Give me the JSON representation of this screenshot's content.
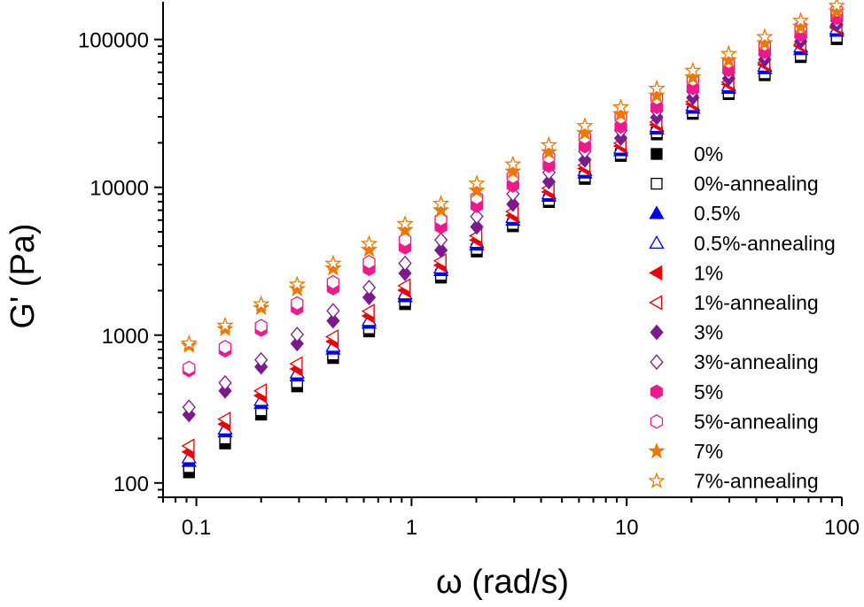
{
  "chart_data": {
    "type": "scatter",
    "xlabel": "ω (rad/s)",
    "ylabel": "G' (Pa)",
    "xscale": "log",
    "yscale": "log",
    "xlim": [
      0.07,
      100
    ],
    "ylim": [
      80,
      180000
    ],
    "x_ticks": [
      0.1,
      1,
      10,
      100
    ],
    "x_tick_labels": [
      "0.1",
      "1",
      "10",
      "100"
    ],
    "y_ticks": [
      100,
      1000,
      10000,
      100000
    ],
    "y_tick_labels": [
      "100",
      "1000",
      "10000",
      "100000"
    ],
    "grid": false,
    "legend_position": "right",
    "x": [
      0.0924,
      0.136,
      0.2,
      0.294,
      0.432,
      0.635,
      0.933,
      1.37,
      2.01,
      2.96,
      4.35,
      6.39,
      9.39,
      13.8,
      20.3,
      29.8,
      43.8,
      64.4,
      94.7
    ],
    "series": [
      {
        "name": "0%",
        "marker": "square",
        "filled": true,
        "color": "#000000",
        "values": [
          118,
          185,
          290,
          450,
          700,
          1060,
          1620,
          2450,
          3680,
          5450,
          7950,
          11400,
          16300,
          22800,
          31400,
          42700,
          57300,
          76000,
          100500
        ]
      },
      {
        "name": "0%-annealing",
        "marker": "square",
        "filled": false,
        "color": "#000000",
        "values": [
          128,
          200,
          310,
          480,
          740,
          1110,
          1700,
          2560,
          3830,
          5650,
          8200,
          11800,
          16800,
          23500,
          32300,
          43800,
          59000,
          78500,
          104000
        ]
      },
      {
        "name": "0.5%",
        "marker": "triangle-up",
        "filled": true,
        "color": "#0000ee",
        "values": [
          140,
          222,
          345,
          530,
          805,
          1205,
          1820,
          2740,
          4070,
          6000,
          8700,
          12500,
          17700,
          24800,
          34300,
          46800,
          63500,
          85500,
          114000
        ]
      },
      {
        "name": "0.5%-annealing",
        "marker": "triangle-up",
        "filled": false,
        "color": "#0000ee",
        "values": [
          148,
          232,
          362,
          555,
          840,
          1255,
          1900,
          2850,
          4230,
          6250,
          9050,
          13000,
          18400,
          25800,
          35700,
          48600,
          66000,
          89000,
          118000
        ]
      },
      {
        "name": "1%",
        "marker": "triangle-left",
        "filled": true,
        "color": "#ee0000",
        "values": [
          162,
          250,
          390,
          590,
          905,
          1350,
          2010,
          2970,
          4400,
          6450,
          9300,
          13400,
          19000,
          26500,
          36500,
          49800,
          67500,
          90500,
          120000
        ]
      },
      {
        "name": "1%-annealing",
        "marker": "triangle-left",
        "filled": false,
        "color": "#ee0000",
        "values": [
          178,
          270,
          420,
          640,
          975,
          1450,
          2160,
          3180,
          4700,
          6850,
          9850,
          14100,
          19900,
          27600,
          37900,
          51500,
          69500,
          93000,
          123000
        ]
      },
      {
        "name": "3%",
        "marker": "diamond",
        "filled": true,
        "color": "#7a1a8c",
        "values": [
          290,
          420,
          610,
          875,
          1250,
          1800,
          2620,
          3760,
          5400,
          7700,
          10900,
          15300,
          21500,
          29700,
          40400,
          54500,
          73000,
          97000,
          126000
        ]
      },
      {
        "name": "3%-annealing",
        "marker": "diamond",
        "filled": false,
        "color": "#7a1a8c",
        "values": [
          325,
          475,
          680,
          1010,
          1460,
          2100,
          3060,
          4400,
          6350,
          9000,
          12600,
          17500,
          24200,
          33000,
          44500,
          59500,
          79000,
          104000,
          134000
        ]
      },
      {
        "name": "5%",
        "marker": "hexagon",
        "filled": true,
        "color": "#ee1a8c",
        "values": [
          580,
          790,
          1090,
          1520,
          2080,
          2810,
          3930,
          5400,
          7500,
          10300,
          14000,
          19000,
          25800,
          35000,
          47000,
          62500,
          82500,
          108000,
          140000
        ]
      },
      {
        "name": "5%-annealing",
        "marker": "hexagon",
        "filled": false,
        "color": "#ee1a8c",
        "values": [
          600,
          830,
          1150,
          1640,
          2280,
          3120,
          4400,
          6080,
          8500,
          11800,
          16000,
          21800,
          29700,
          40000,
          53500,
          70500,
          92500,
          121000,
          157000
        ]
      },
      {
        "name": "7%",
        "marker": "star",
        "filled": true,
        "color": "#ee7700",
        "values": [
          850,
          1100,
          1530,
          2050,
          2830,
          3780,
          5150,
          7000,
          9500,
          12800,
          17300,
          23300,
          31300,
          41800,
          55500,
          72500,
          94500,
          122000,
          155000
        ]
      },
      {
        "name": "7%-annealing",
        "marker": "star",
        "filled": false,
        "color": "#ee7700",
        "values": [
          880,
          1160,
          1620,
          2200,
          3050,
          4150,
          5650,
          7750,
          10600,
          14300,
          19300,
          26000,
          34800,
          46500,
          61500,
          80000,
          104000,
          134000,
          169000
        ]
      }
    ]
  }
}
